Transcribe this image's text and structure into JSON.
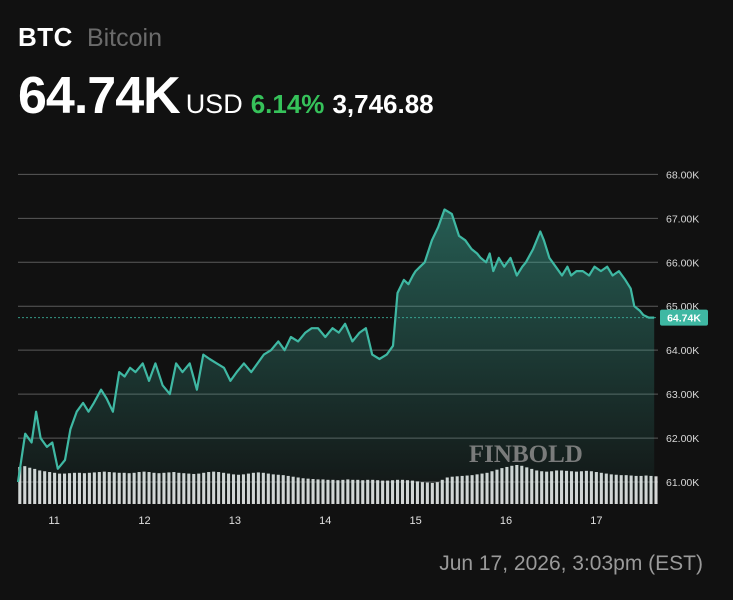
{
  "header": {
    "ticker": "BTC",
    "asset_name": "Bitcoin",
    "price": "64.74K",
    "currency": "USD",
    "change_percent": "6.14%",
    "change_absolute": "3,746.88"
  },
  "timestamp": "Jun 17, 2026, 3:03pm (EST)",
  "watermark": "FINBOLD",
  "colors": {
    "background": "#111111",
    "line": "#3fb8a3",
    "positive": "#36c25a",
    "grid": "#5a5a5a",
    "volume": "#e8e8e8",
    "muted_text": "#6b6b6b"
  },
  "chart_data": {
    "type": "area",
    "ylabel_side": "right",
    "ylim": [
      60.5,
      68.6
    ],
    "yticks": [
      61.0,
      62.0,
      63.0,
      64.0,
      65.0,
      66.0,
      67.0,
      68.0
    ],
    "ytick_labels": [
      "61.00K",
      "62.00K",
      "63.00K",
      "64.00K",
      "65.00K",
      "66.00K",
      "67.00K",
      "68.00K"
    ],
    "xlim": [
      10.6,
      17.66
    ],
    "xticks": [
      11,
      12,
      13,
      14,
      15,
      16,
      17
    ],
    "xtick_labels": [
      "11",
      "12",
      "13",
      "14",
      "15",
      "16",
      "17"
    ],
    "last_value": 64.74,
    "last_value_label": "64.74K",
    "grid": true,
    "series": [
      {
        "x": [
          10.6,
          10.68,
          10.75,
          10.8,
          10.85,
          10.92,
          10.98,
          11.04,
          11.12,
          11.18,
          11.25,
          11.32,
          11.38,
          11.44,
          11.52,
          11.58,
          11.65,
          11.72,
          11.78,
          11.84,
          11.9,
          11.98,
          12.05,
          12.12,
          12.2,
          12.28,
          12.35,
          12.42,
          12.5,
          12.58,
          12.65,
          12.72,
          12.8,
          12.88,
          12.95,
          13.02,
          13.1,
          13.18,
          13.25,
          13.32,
          13.4,
          13.48,
          13.55,
          13.62,
          13.7,
          13.78,
          13.85,
          13.92,
          14.0,
          14.08,
          14.15,
          14.22,
          14.3,
          14.38,
          14.45,
          14.52,
          14.6,
          14.68,
          14.75,
          14.8,
          14.87,
          14.92,
          14.97,
          15.0,
          15.05,
          15.1,
          15.18,
          15.25,
          15.32,
          15.4,
          15.48,
          15.55,
          15.62,
          15.68,
          15.72,
          15.78,
          15.82,
          15.86,
          15.92,
          15.98,
          16.05,
          16.12,
          16.18,
          16.22,
          16.3,
          16.38,
          16.42,
          16.48,
          16.55,
          16.62,
          16.68,
          16.72,
          16.78,
          16.85,
          16.92,
          16.98,
          17.05,
          17.12,
          17.18,
          17.25,
          17.32,
          17.38,
          17.42,
          17.48,
          17.52,
          17.58,
          17.64
        ],
        "values": [
          61.0,
          62.1,
          61.9,
          62.6,
          62.0,
          61.8,
          61.9,
          61.3,
          61.5,
          62.2,
          62.6,
          62.8,
          62.6,
          62.8,
          63.1,
          62.9,
          62.6,
          63.5,
          63.4,
          63.6,
          63.5,
          63.7,
          63.3,
          63.7,
          63.2,
          63.0,
          63.7,
          63.5,
          63.7,
          63.1,
          63.9,
          63.8,
          63.7,
          63.6,
          63.3,
          63.5,
          63.7,
          63.5,
          63.7,
          63.9,
          64.0,
          64.2,
          64.0,
          64.3,
          64.2,
          64.4,
          64.5,
          64.5,
          64.3,
          64.5,
          64.4,
          64.6,
          64.2,
          64.4,
          64.5,
          63.9,
          63.8,
          63.9,
          64.1,
          65.3,
          65.6,
          65.5,
          65.7,
          65.8,
          65.9,
          66.0,
          66.5,
          66.8,
          67.2,
          67.1,
          66.6,
          66.5,
          66.3,
          66.2,
          66.1,
          66.0,
          66.2,
          65.8,
          66.1,
          65.9,
          66.1,
          65.7,
          65.9,
          66.0,
          66.3,
          66.7,
          66.5,
          66.1,
          65.9,
          65.7,
          65.9,
          65.7,
          65.8,
          65.8,
          65.7,
          65.9,
          65.8,
          65.9,
          65.7,
          65.8,
          65.6,
          65.4,
          65.0,
          64.9,
          64.8,
          64.74,
          64.74
        ]
      }
    ],
    "volume": {
      "x_start": 10.62,
      "x_step": 0.055,
      "values": [
        0.95,
        0.97,
        0.93,
        0.9,
        0.86,
        0.84,
        0.82,
        0.8,
        0.78,
        0.78,
        0.79,
        0.8,
        0.8,
        0.79,
        0.8,
        0.81,
        0.82,
        0.83,
        0.82,
        0.81,
        0.8,
        0.8,
        0.79,
        0.8,
        0.82,
        0.83,
        0.82,
        0.8,
        0.79,
        0.8,
        0.81,
        0.82,
        0.8,
        0.79,
        0.78,
        0.77,
        0.78,
        0.8,
        0.82,
        0.83,
        0.82,
        0.8,
        0.78,
        0.76,
        0.75,
        0.76,
        0.78,
        0.8,
        0.81,
        0.8,
        0.78,
        0.76,
        0.75,
        0.74,
        0.72,
        0.7,
        0.68,
        0.66,
        0.65,
        0.64,
        0.63,
        0.63,
        0.62,
        0.62,
        0.61,
        0.62,
        0.63,
        0.62,
        0.62,
        0.61,
        0.62,
        0.62,
        0.61,
        0.6,
        0.6,
        0.61,
        0.62,
        0.62,
        0.61,
        0.6,
        0.58,
        0.56,
        0.55,
        0.54,
        0.56,
        0.62,
        0.68,
        0.7,
        0.71,
        0.72,
        0.73,
        0.74,
        0.76,
        0.78,
        0.8,
        0.84,
        0.88,
        0.92,
        0.95,
        0.98,
        1.0,
        0.98,
        0.94,
        0.9,
        0.86,
        0.84,
        0.83,
        0.84,
        0.86,
        0.86,
        0.85,
        0.84,
        0.83,
        0.84,
        0.85,
        0.84,
        0.82,
        0.8,
        0.78,
        0.76,
        0.75,
        0.74,
        0.74,
        0.73,
        0.72,
        0.72,
        0.73,
        0.72,
        0.71
      ]
    }
  }
}
